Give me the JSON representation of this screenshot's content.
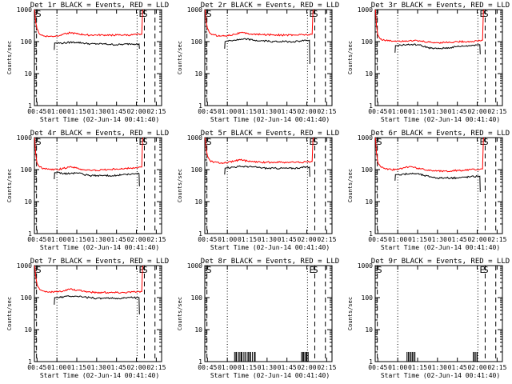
{
  "figure": {
    "xlabel": "Start Time (02-Jun-14 00:41:40)",
    "ylabel": "Counts/sec",
    "x_tick_labels": [
      "00:45",
      "01:00",
      "01:15",
      "01:30",
      "01:45",
      "02:00",
      "02:15"
    ],
    "y_tick_labels": [
      "1",
      "10",
      "100",
      "1000"
    ],
    "x_ticks_min": [
      45,
      60,
      75,
      90,
      105,
      120,
      135
    ],
    "y_ticks": [
      1,
      10,
      100,
      1000
    ],
    "ylim": [
      1,
      1000
    ],
    "y_scale": "log",
    "colors": {
      "events": "#000000",
      "lld": "#ff0000",
      "axes": "#000000"
    }
  },
  "chart_data": [
    {
      "type": "line",
      "title": "Det 1r BLACK = Events, RED = LLD",
      "xlim_min": [
        43,
        139
      ],
      "dotted_lines_min": [
        60,
        120.5
      ],
      "dashed_lines_min": [
        44.6,
        126,
        134
      ],
      "marker_labels": [
        {
          "text": "S",
          "x_min": 44.2
        },
        {
          "text": "E",
          "x_min": 121.8
        },
        {
          "text": "S",
          "x_min": 124.5
        }
      ],
      "series": [
        {
          "key": "lld",
          "x_min": [
            43.2,
            44,
            45,
            47,
            50,
            55,
            60,
            65,
            70,
            75,
            80,
            85,
            90,
            95,
            100,
            105,
            110,
            115,
            120,
            124,
            124.6,
            125
          ],
          "y": [
            1000,
            400,
            250,
            170,
            150,
            145,
            150,
            175,
            190,
            175,
            165,
            160,
            160,
            160,
            160,
            160,
            160,
            160,
            165,
            170,
            900,
            1000
          ]
        },
        {
          "key": "events",
          "x_min": [
            58,
            58.3,
            60,
            65,
            70,
            75,
            80,
            85,
            90,
            95,
            100,
            105,
            110,
            115,
            120,
            122,
            122.3
          ],
          "y": [
            55,
            90,
            90,
            90,
            95,
            95,
            90,
            85,
            85,
            85,
            82,
            80,
            82,
            85,
            85,
            85,
            60
          ]
        }
      ]
    },
    {
      "type": "line",
      "title": "Det 2r BLACK = Events, RED = LLD",
      "xlim_min": [
        43,
        139
      ],
      "dotted_lines_min": [
        60,
        120.5
      ],
      "dashed_lines_min": [
        44.6,
        126,
        134
      ],
      "marker_labels": [
        {
          "text": "S",
          "x_min": 44.2
        },
        {
          "text": "E",
          "x_min": 121.8
        },
        {
          "text": "S",
          "x_min": 124.5
        }
      ],
      "series": [
        {
          "key": "lld",
          "x_min": [
            43.2,
            44,
            45,
            47,
            50,
            55,
            60,
            65,
            70,
            75,
            80,
            85,
            90,
            95,
            100,
            105,
            110,
            115,
            120,
            124,
            124.6,
            125
          ],
          "y": [
            1000,
            420,
            260,
            180,
            160,
            150,
            155,
            170,
            190,
            180,
            170,
            165,
            165,
            165,
            160,
            160,
            160,
            165,
            165,
            170,
            900,
            1000
          ]
        },
        {
          "key": "events",
          "x_min": [
            58,
            58.3,
            60,
            65,
            70,
            75,
            80,
            85,
            90,
            95,
            100,
            105,
            110,
            115,
            120,
            122,
            122.3
          ],
          "y": [
            60,
            100,
            105,
            110,
            115,
            120,
            110,
            105,
            105,
            100,
            100,
            100,
            100,
            105,
            110,
            110,
            20
          ]
        }
      ]
    },
    {
      "type": "line",
      "title": "Det 3r BLACK = Events, RED = LLD",
      "xlim_min": [
        43,
        139
      ],
      "dotted_lines_min": [
        60,
        120.5
      ],
      "dashed_lines_min": [
        44.6,
        126,
        134
      ],
      "marker_labels": [
        {
          "text": "E",
          "x_min": 121.8
        },
        {
          "text": "S",
          "x_min": 124.5
        }
      ],
      "series": [
        {
          "key": "lld",
          "x_min": [
            43.2,
            44,
            45,
            47,
            50,
            55,
            60,
            65,
            70,
            75,
            80,
            85,
            90,
            95,
            100,
            105,
            110,
            115,
            120,
            124,
            124.6,
            125
          ],
          "y": [
            1000,
            300,
            160,
            120,
            110,
            105,
            105,
            105,
            110,
            105,
            100,
            95,
            92,
            95,
            95,
            100,
            100,
            100,
            105,
            110,
            900,
            1000
          ]
        },
        {
          "key": "events",
          "x_min": [
            58,
            58.3,
            60,
            65,
            70,
            75,
            80,
            85,
            90,
            95,
            100,
            105,
            110,
            115,
            120,
            122,
            122.3
          ],
          "y": [
            45,
            75,
            75,
            80,
            80,
            80,
            70,
            62,
            60,
            62,
            65,
            70,
            72,
            75,
            80,
            80,
            40
          ]
        }
      ]
    },
    {
      "type": "line",
      "title": "Det 4r BLACK = Events, RED = LLD",
      "xlim_min": [
        43,
        139
      ],
      "dotted_lines_min": [
        60,
        120.5
      ],
      "dashed_lines_min": [
        44.6,
        126,
        134
      ],
      "marker_labels": [
        {
          "text": "S",
          "x_min": 44.2
        },
        {
          "text": "E",
          "x_min": 121.8
        },
        {
          "text": "S",
          "x_min": 124.5
        }
      ],
      "series": [
        {
          "key": "lld",
          "x_min": [
            43.2,
            44,
            45,
            47,
            50,
            55,
            60,
            65,
            70,
            75,
            80,
            85,
            90,
            95,
            100,
            105,
            110,
            115,
            120,
            124,
            124.6,
            125
          ],
          "y": [
            1000,
            300,
            160,
            120,
            110,
            100,
            100,
            110,
            125,
            110,
            100,
            95,
            95,
            100,
            100,
            105,
            105,
            110,
            115,
            120,
            900,
            1000
          ]
        },
        {
          "key": "events",
          "x_min": [
            58,
            58.3,
            60,
            65,
            70,
            75,
            80,
            85,
            90,
            95,
            100,
            105,
            110,
            115,
            120,
            122,
            122.3
          ],
          "y": [
            50,
            80,
            80,
            75,
            75,
            80,
            70,
            65,
            65,
            65,
            65,
            65,
            70,
            70,
            75,
            75,
            30
          ]
        }
      ]
    },
    {
      "type": "line",
      "title": "Det 5r BLACK = Events, RED = LLD",
      "xlim_min": [
        43,
        139
      ],
      "dotted_lines_min": [
        60,
        120.5
      ],
      "dashed_lines_min": [
        44.6,
        126,
        134
      ],
      "marker_labels": [
        {
          "text": "S",
          "x_min": 44.2
        },
        {
          "text": "E",
          "x_min": 121.8
        },
        {
          "text": "S",
          "x_min": 124.5
        }
      ],
      "series": [
        {
          "key": "lld",
          "x_min": [
            43.2,
            44,
            45,
            47,
            50,
            55,
            60,
            65,
            70,
            75,
            80,
            85,
            90,
            95,
            100,
            105,
            110,
            115,
            120,
            124,
            124.6,
            125
          ],
          "y": [
            1000,
            450,
            270,
            190,
            170,
            160,
            165,
            185,
            200,
            185,
            175,
            170,
            170,
            170,
            170,
            170,
            170,
            170,
            175,
            180,
            900,
            1000
          ]
        },
        {
          "key": "events",
          "x_min": [
            58,
            58.3,
            60,
            65,
            70,
            75,
            80,
            85,
            90,
            95,
            100,
            105,
            110,
            115,
            120,
            122,
            122.3
          ],
          "y": [
            70,
            110,
            115,
            120,
            125,
            125,
            120,
            115,
            110,
            110,
            110,
            110,
            110,
            115,
            120,
            120,
            60
          ]
        }
      ]
    },
    {
      "type": "line",
      "title": "Det 6r BLACK = Events, RED = LLD",
      "xlim_min": [
        43,
        139
      ],
      "dotted_lines_min": [
        60,
        120.5
      ],
      "dashed_lines_min": [
        44.6,
        126,
        134
      ],
      "marker_labels": [
        {
          "text": "S",
          "x_min": 44.2
        },
        {
          "text": "E",
          "x_min": 121.8
        },
        {
          "text": "S",
          "x_min": 124.5
        }
      ],
      "series": [
        {
          "key": "lld",
          "x_min": [
            43.2,
            44,
            45,
            47,
            50,
            55,
            60,
            65,
            70,
            75,
            80,
            85,
            90,
            95,
            100,
            105,
            110,
            115,
            120,
            124,
            124.6,
            125
          ],
          "y": [
            1000,
            320,
            170,
            125,
            110,
            100,
            100,
            115,
            125,
            110,
            100,
            95,
            92,
            90,
            90,
            95,
            95,
            100,
            100,
            105,
            900,
            1000
          ]
        },
        {
          "key": "events",
          "x_min": [
            58,
            58.3,
            60,
            65,
            70,
            75,
            80,
            85,
            90,
            95,
            100,
            105,
            110,
            115,
            120,
            122,
            122.3
          ],
          "y": [
            45,
            70,
            70,
            72,
            75,
            75,
            65,
            60,
            55,
            55,
            55,
            55,
            58,
            60,
            62,
            62,
            20
          ]
        }
      ]
    },
    {
      "type": "line",
      "title": "Det 7r BLACK = Events, RED = LLD",
      "xlim_min": [
        43,
        139
      ],
      "dotted_lines_min": [
        60,
        120.5
      ],
      "dashed_lines_min": [
        44.6,
        126,
        134
      ],
      "marker_labels": [
        {
          "text": "S",
          "x_min": 44.2
        },
        {
          "text": "E",
          "x_min": 121.8
        },
        {
          "text": "S",
          "x_min": 124.5
        }
      ],
      "series": [
        {
          "key": "lld",
          "x_min": [
            43.2,
            44,
            45,
            47,
            50,
            55,
            60,
            65,
            70,
            75,
            80,
            85,
            90,
            95,
            100,
            105,
            110,
            115,
            120,
            124,
            124.6,
            125
          ],
          "y": [
            1000,
            450,
            260,
            180,
            160,
            150,
            150,
            165,
            185,
            170,
            160,
            150,
            145,
            145,
            145,
            145,
            145,
            150,
            150,
            155,
            900,
            1000
          ]
        },
        {
          "key": "events",
          "x_min": [
            58,
            58.3,
            60,
            65,
            70,
            75,
            80,
            85,
            90,
            95,
            100,
            105,
            110,
            115,
            120,
            122,
            122.3
          ],
          "y": [
            60,
            100,
            100,
            105,
            110,
            110,
            105,
            100,
            95,
            95,
            95,
            95,
            95,
            100,
            100,
            100,
            30
          ]
        }
      ]
    },
    {
      "type": "line",
      "title": "Det 8r BLACK = Events, RED = LLD",
      "xlim_min": [
        43,
        139
      ],
      "dotted_lines_min": [
        60,
        120.5
      ],
      "dashed_lines_min": [
        44.6,
        126,
        134
      ],
      "marker_labels": [
        {
          "text": "S",
          "x_min": 44.2
        },
        {
          "text": "E",
          "x_min": 121.8
        },
        {
          "text": "S",
          "x_min": 124.5
        }
      ],
      "spikes": {
        "value": 2,
        "x_min": [
          65.5,
          66.5,
          67,
          68.5,
          69.5,
          70.5,
          71,
          72.5,
          73.5,
          75,
          76,
          77,
          77.5,
          79,
          80.5,
          81,
          116,
          117,
          117.5,
          118.5,
          119.5,
          120,
          121
        ]
      }
    },
    {
      "type": "line",
      "title": "Det 9r BLACK = Events, RED = LLD",
      "xlim_min": [
        43,
        139
      ],
      "dotted_lines_min": [
        60,
        120.5
      ],
      "dashed_lines_min": [
        44.6,
        126,
        134
      ],
      "marker_labels": [
        {
          "text": "S",
          "x_min": 44.2
        },
        {
          "text": "E",
          "x_min": 121.8
        },
        {
          "text": "S",
          "x_min": 124.5
        }
      ],
      "spikes": {
        "value": 2,
        "x_min": [
          67,
          68,
          69,
          70,
          71,
          72,
          73,
          117,
          118,
          119,
          120
        ]
      }
    }
  ]
}
